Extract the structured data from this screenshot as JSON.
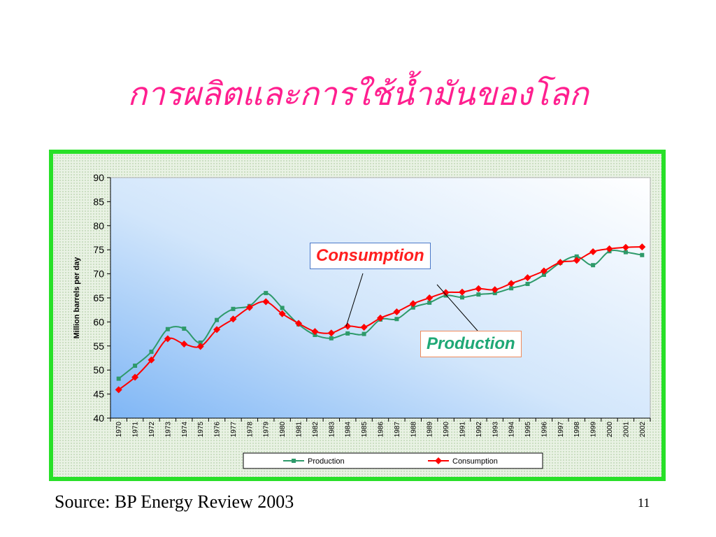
{
  "slide": {
    "title": "การผลิตและการใช้น้ำมันของโลก",
    "source": "Source: BP Energy Review 2003",
    "page_number": "11"
  },
  "annotations": {
    "consumption_label": "Consumption",
    "production_label": "Production"
  },
  "colors": {
    "title": "#ff1f8f",
    "frame_border": "#28e028",
    "production_series": "#2e9a6a",
    "consumption_series": "#ff0000"
  },
  "chart_data": {
    "type": "line",
    "title": "",
    "xlabel": "",
    "ylabel": "Million barrels per day",
    "ylim": [
      40,
      90
    ],
    "yticks": [
      40,
      45,
      50,
      55,
      60,
      65,
      70,
      75,
      80,
      85,
      90
    ],
    "grid": false,
    "legend_position": "bottom",
    "categories": [
      "1970",
      "1971",
      "1972",
      "1973",
      "1974",
      "1975",
      "1976",
      "1977",
      "1978",
      "1979",
      "1980",
      "1981",
      "1982",
      "1983",
      "1984",
      "1985",
      "1986",
      "1987",
      "1988",
      "1989",
      "1990",
      "1991",
      "1992",
      "1993",
      "1994",
      "1995",
      "1996",
      "1997",
      "1998",
      "1999",
      "2000",
      "2001",
      "2002"
    ],
    "series": [
      {
        "name": "Production",
        "values": [
          48.2,
          50.9,
          53.8,
          58.5,
          58.6,
          55.7,
          60.4,
          62.7,
          63.3,
          66.0,
          62.9,
          59.5,
          57.3,
          56.6,
          57.6,
          57.5,
          60.5,
          60.6,
          63.0,
          64.0,
          65.5,
          65.1,
          65.7,
          66.0,
          67.0,
          67.9,
          69.8,
          72.3,
          73.6,
          71.8,
          74.7,
          74.5,
          73.9
        ]
      },
      {
        "name": "Consumption",
        "values": [
          45.9,
          48.5,
          52.1,
          56.5,
          55.4,
          54.9,
          58.4,
          60.6,
          63.0,
          64.2,
          61.7,
          59.7,
          58.0,
          57.7,
          59.1,
          58.9,
          60.8,
          62.1,
          63.8,
          65.0,
          66.1,
          66.2,
          66.9,
          66.7,
          68.0,
          69.2,
          70.6,
          72.4,
          72.8,
          74.6,
          75.2,
          75.5,
          75.6
        ]
      }
    ]
  }
}
